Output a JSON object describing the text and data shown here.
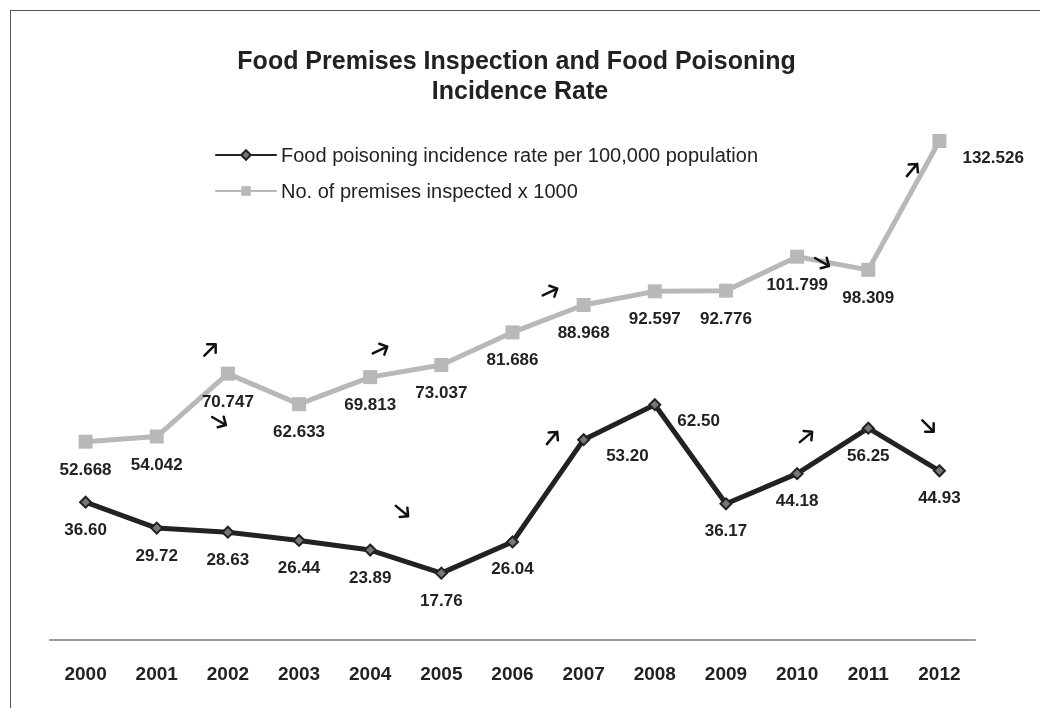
{
  "chart_data": {
    "type": "line",
    "title": "Food Premises Inspection and Food Poisoning Incidence Rate",
    "categories": [
      "2000",
      "2001",
      "2002",
      "2003",
      "2004",
      "2005",
      "2006",
      "2007",
      "2008",
      "2009",
      "2010",
      "2011",
      "2012"
    ],
    "series": [
      {
        "name": "Food poisoning incidence rate per 100,000 population",
        "color": "#222222",
        "marker": "diamond",
        "values": [
          36.6,
          29.72,
          28.63,
          26.44,
          23.89,
          17.76,
          26.04,
          53.2,
          62.5,
          36.17,
          44.18,
          56.25,
          44.93
        ],
        "value_labels": [
          "36.60",
          "29.72",
          "28.63",
          "26.44",
          "23.89",
          "17.76",
          "26.04",
          "53.20",
          "62.50",
          "36.17",
          "44.18",
          "56.25",
          "44.93"
        ]
      },
      {
        "name": "No. of premises inspected x 1000",
        "color": "#b8b8b8",
        "marker": "square",
        "values": [
          52.668,
          54.042,
          70.747,
          62.633,
          69.813,
          73.037,
          81.686,
          88.968,
          92.597,
          92.776,
          101.799,
          98.309,
          132.526
        ],
        "value_labels": [
          "52.668",
          "54.042",
          "70.747",
          "62.633",
          "69.813",
          "73.037",
          "81.686",
          "88.968",
          "92.597",
          "92.776",
          "101.799",
          "98.309",
          "132.526"
        ]
      }
    ],
    "tick_labels": "x",
    "grid": false,
    "legend": "top",
    "line_style": "solid"
  }
}
